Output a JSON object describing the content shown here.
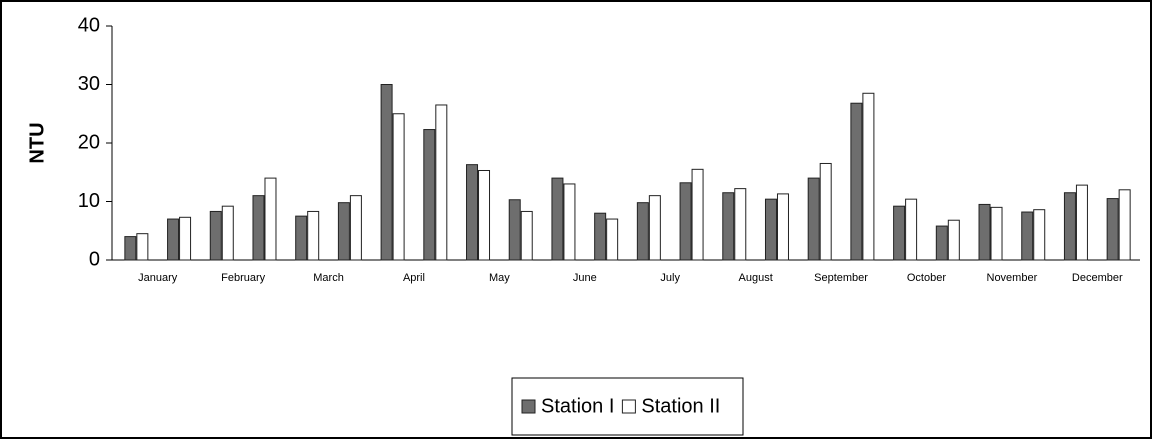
{
  "chart_data": {
    "type": "bar",
    "y_label": "NTU",
    "categories": [
      "January",
      null,
      "February",
      null,
      "March",
      null,
      "April",
      null,
      "May",
      null,
      "June",
      null,
      "July",
      null,
      "August",
      null,
      "September",
      null,
      "October",
      null,
      "November",
      null,
      "December",
      null
    ],
    "series": [
      {
        "name": "Station I",
        "color": "#6e6e6e",
        "values": [
          4,
          7,
          8.3,
          11,
          7.5,
          9.8,
          30,
          22.3,
          16.3,
          10.3,
          14,
          8,
          9.8,
          13.2,
          11.5,
          10.4,
          14,
          26.8,
          9.2,
          5.8,
          9.5,
          8.2,
          11.5,
          10.5
        ]
      },
      {
        "name": "Station II",
        "color": "#ffffff",
        "values": [
          4.5,
          7.3,
          9.2,
          14,
          8.3,
          11,
          25,
          26.5,
          15.3,
          8.3,
          13,
          7,
          11,
          15.5,
          12.2,
          11.3,
          16.5,
          28.5,
          10.4,
          6.8,
          9,
          8.6,
          12.8,
          12
        ]
      }
    ],
    "ylim": [
      0,
      40
    ],
    "yticks": [
      0,
      10,
      20,
      30,
      40
    ],
    "grid": false
  }
}
